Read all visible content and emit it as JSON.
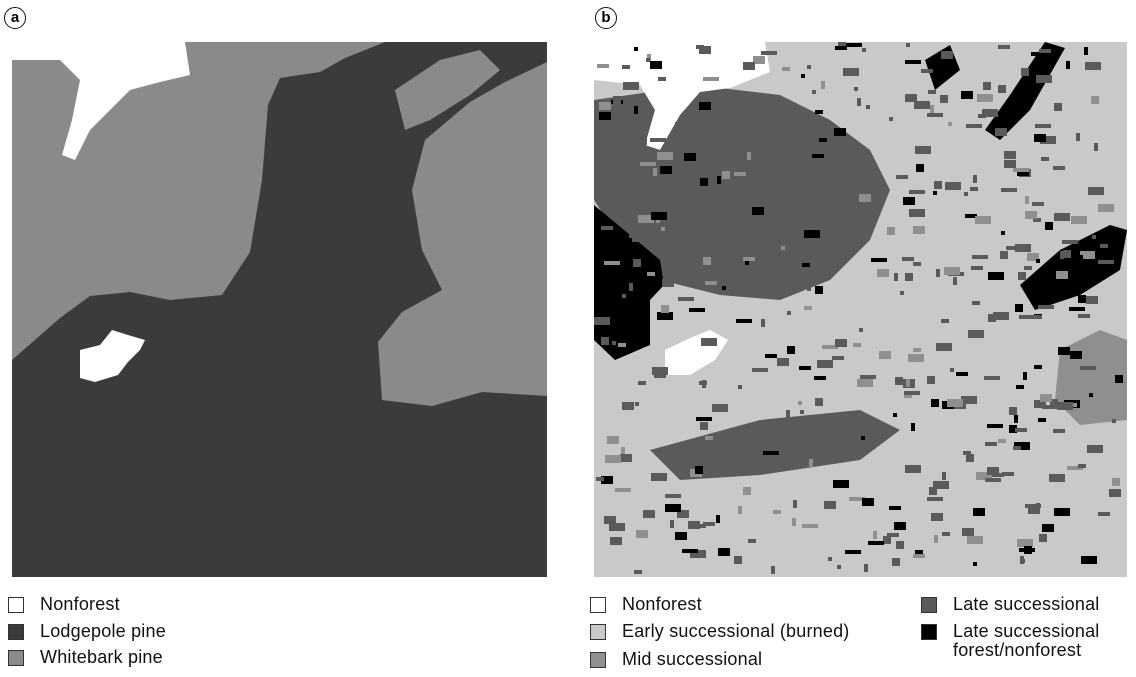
{
  "panels": [
    {
      "label": "a",
      "legend": [
        {
          "label": "Nonforest",
          "color": "#ffffff"
        },
        {
          "label": "Lodgepole pine",
          "color": "#3b3b3b"
        },
        {
          "label": "Whitebark pine",
          "color": "#8a8a8a"
        }
      ]
    },
    {
      "label": "b",
      "legend": [
        {
          "label": "Nonforest",
          "color": "#ffffff"
        },
        {
          "label": "Early successional (burned)",
          "color": "#c9c9c9"
        },
        {
          "label": "Mid successional",
          "color": "#8f8f8f"
        },
        {
          "label": "Late successional",
          "color": "#5a5a5a"
        },
        {
          "label": "Late successional forest/nonforest",
          "color": "#000000"
        }
      ]
    }
  ]
}
